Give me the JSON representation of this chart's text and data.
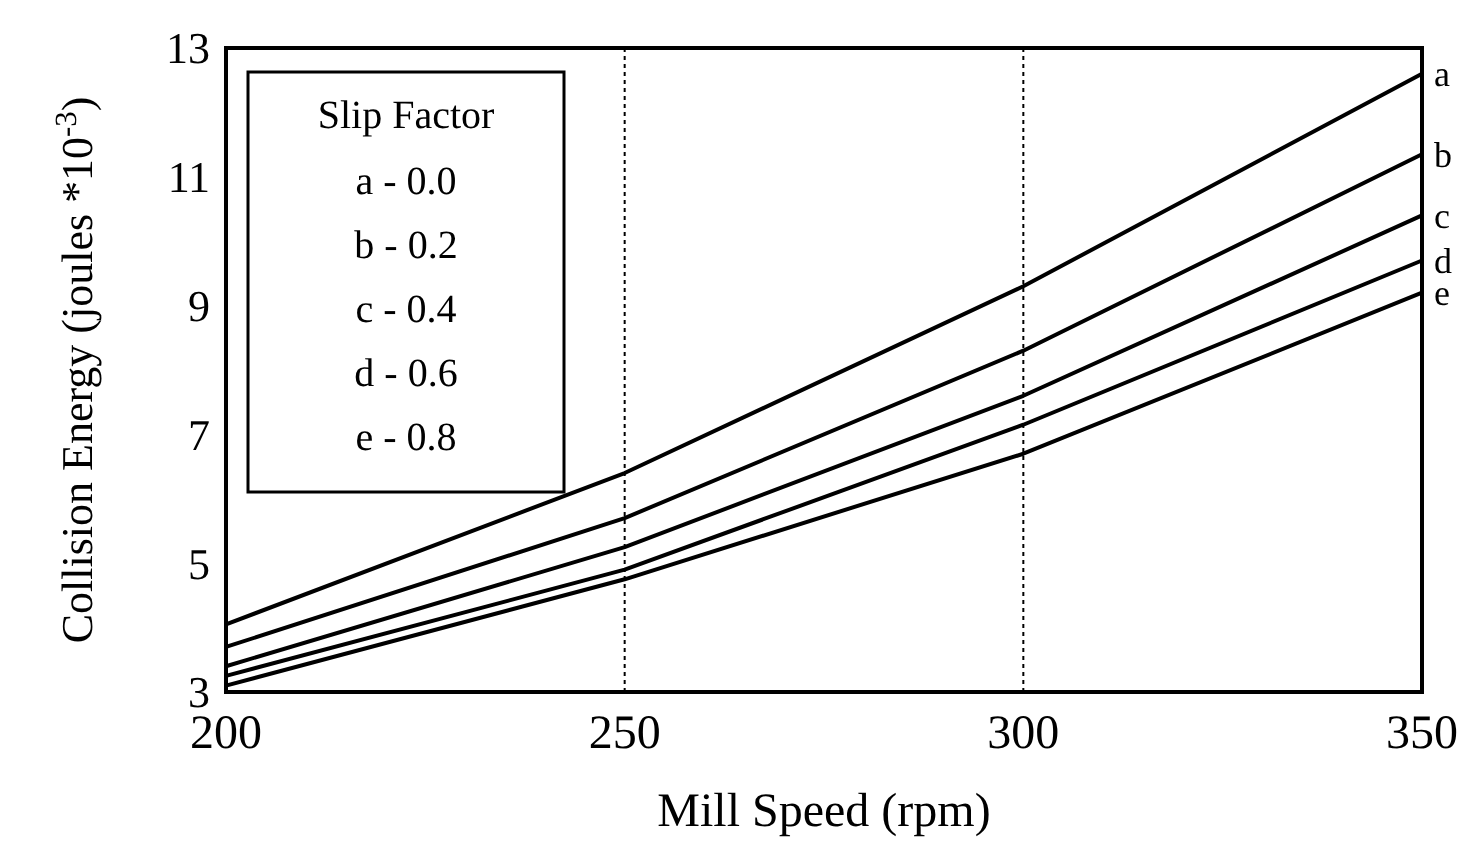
{
  "chart_data": {
    "type": "line",
    "xlabel": "Mill Speed (rpm)",
    "ylabel": "Collision Energy (joules *10$^{-3}$)",
    "legend_title": "Slip Factor",
    "annotations": [
      "a - 0.0",
      "b - 0.2",
      "c - 0.4",
      "d - 0.6",
      "e - 0.8"
    ],
    "x": [
      200,
      250,
      300,
      350
    ],
    "series": [
      {
        "name": "a",
        "color": "#000000",
        "values": [
          4.05,
          6.4,
          9.3,
          12.6
        ]
      },
      {
        "name": "b",
        "color": "#000000",
        "values": [
          3.7,
          5.7,
          8.3,
          11.35
        ]
      },
      {
        "name": "c",
        "color": "#000000",
        "values": [
          3.4,
          5.25,
          7.6,
          10.4
        ]
      },
      {
        "name": "d",
        "color": "#000000",
        "values": [
          3.25,
          4.9,
          7.15,
          9.7
        ]
      },
      {
        "name": "e",
        "color": "#000000",
        "values": [
          3.1,
          4.75,
          6.7,
          9.2
        ]
      }
    ],
    "xlim": [
      200,
      350
    ],
    "xticks": [
      200,
      250,
      300,
      350
    ],
    "ylim": [
      3,
      13
    ],
    "yticks": [
      3,
      5,
      7,
      9,
      11,
      13
    ],
    "grid": "x",
    "marker": "none",
    "line_style": "solid"
  }
}
